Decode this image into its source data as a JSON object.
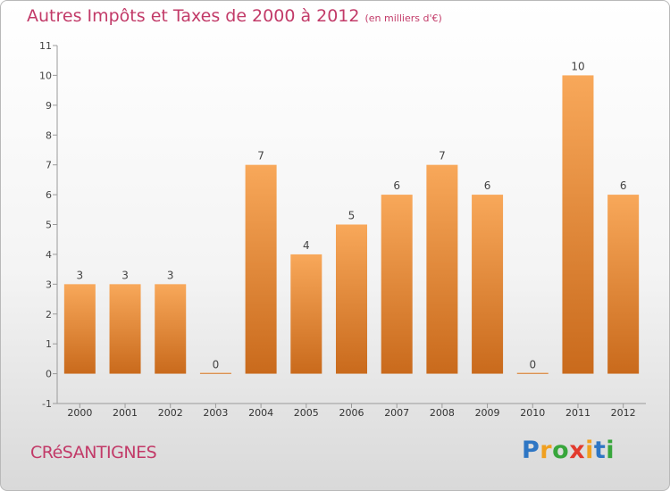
{
  "header": {
    "title": "Autres Impôts et Taxes de 2000 à 2012",
    "subtitle": "(en milliers d'€)"
  },
  "footer": {
    "commune": "CRéSANTIGNES",
    "logo": {
      "letters": [
        "P",
        "r",
        "o",
        "x",
        "i",
        "t",
        "i"
      ]
    }
  },
  "colors": {
    "title": "#c23a68",
    "bar_light": "#f8a85a",
    "bar_dark": "#c96a1c",
    "axis": "#9a9a9a"
  },
  "chart_data": {
    "type": "bar",
    "categories": [
      "2000",
      "2001",
      "2002",
      "2003",
      "2004",
      "2005",
      "2006",
      "2007",
      "2008",
      "2009",
      "2010",
      "2011",
      "2012"
    ],
    "values": [
      3,
      3,
      3,
      0,
      7,
      4,
      5,
      6,
      7,
      6,
      0,
      10,
      6
    ],
    "ylim": [
      -1,
      11
    ],
    "yticks": [
      -1,
      0,
      1,
      2,
      3,
      4,
      5,
      6,
      7,
      8,
      9,
      10,
      11
    ],
    "title": "Autres Impôts et Taxes de 2000 à 2012",
    "subtitle": "(en milliers d'€)",
    "grid": false,
    "legend": "none"
  }
}
